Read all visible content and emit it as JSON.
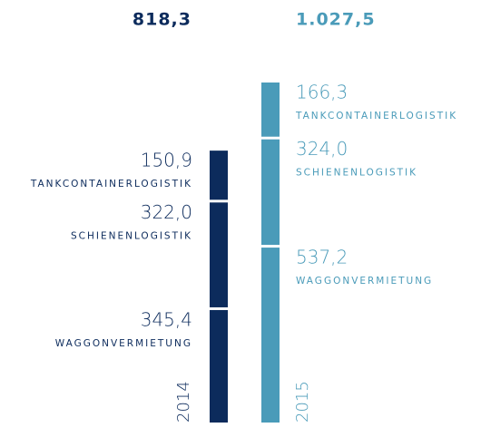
{
  "chart_data": {
    "type": "stacked-bar",
    "categories": [
      "2014",
      "2015"
    ],
    "colors": [
      "#0c2b5c",
      "#4a9bb9"
    ],
    "totals": {
      "values": [
        818.3,
        1027.5
      ],
      "value_labels": [
        "818,3",
        "1.027,5"
      ]
    },
    "series": [
      {
        "name": "WAGGONVERMIETUNG",
        "values": [
          345.4,
          537.2
        ],
        "value_labels": [
          "345,4",
          "537,2"
        ]
      },
      {
        "name": "SCHIENENLOGISTIK",
        "values": [
          322.0,
          324.0
        ],
        "value_labels": [
          "322,0",
          "324,0"
        ]
      },
      {
        "name": "TANKCONTAINERLOGISTIK",
        "values": [
          150.9,
          166.3
        ],
        "value_labels": [
          "150,9",
          "166,3"
        ]
      }
    ]
  }
}
